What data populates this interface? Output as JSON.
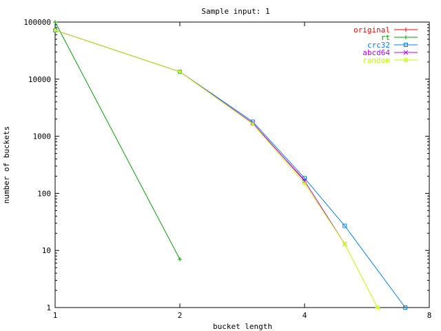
{
  "chart_data": {
    "type": "line",
    "title": "Sample input: 1",
    "xlabel": "bucket length",
    "ylabel": "number of buckets",
    "xscale": "log2",
    "yscale": "log10",
    "xlim": [
      1,
      8
    ],
    "ylim": [
      1,
      100000
    ],
    "xticks": [
      1,
      2,
      4,
      8
    ],
    "xtick_labels": [
      "1",
      "2",
      "4",
      "8"
    ],
    "yticks": [
      1,
      10,
      100,
      1000,
      10000,
      100000
    ],
    "ytick_labels": [
      "1",
      "10",
      "100",
      "1000",
      "10000",
      "100000"
    ],
    "grid": false,
    "legend_position": "top-right",
    "series": [
      {
        "name": "original",
        "color": "#ff0000",
        "marker": "plus",
        "x": [
          1,
          2,
          3,
          4
        ],
        "y": [
          72000,
          13500,
          1650,
          170
        ]
      },
      {
        "name": "rt",
        "color": "#00a000",
        "marker": "plus",
        "x": [
          1,
          2
        ],
        "y": [
          100000,
          7
        ]
      },
      {
        "name": "crc32",
        "color": "#0080ff",
        "marker": "square",
        "x": [
          1,
          2,
          3,
          4,
          5,
          7
        ],
        "y": [
          72000,
          13500,
          1800,
          185,
          27,
          1
        ]
      },
      {
        "name": "abcd64",
        "color": "#c000ff",
        "marker": "cross",
        "x": [
          1,
          2,
          3,
          4,
          5
        ],
        "y": [
          72000,
          13500,
          1700,
          165,
          13
        ]
      },
      {
        "name": "random",
        "color": "#c0ff00",
        "marker": "star",
        "x": [
          1,
          2,
          3,
          4,
          5,
          6
        ],
        "y": [
          72000,
          13500,
          1650,
          150,
          13,
          1
        ]
      }
    ]
  }
}
